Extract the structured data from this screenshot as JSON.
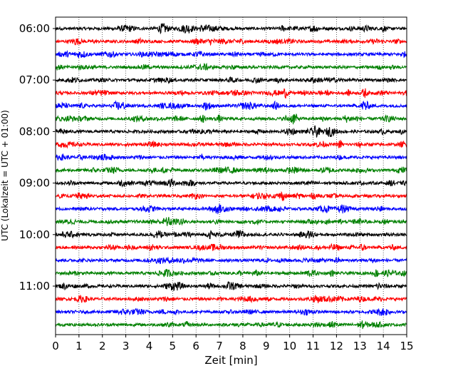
{
  "chart_data": {
    "type": "line",
    "title": "",
    "xlabel": "Zeit  [min]",
    "ylabel": "UTC (Lokalzeit = UTC + 01:00)",
    "xlim": [
      0,
      15
    ],
    "x_ticks": [
      0,
      1,
      2,
      3,
      4,
      5,
      6,
      7,
      8,
      9,
      10,
      11,
      12,
      13,
      14,
      15
    ],
    "y_tick_labels": [
      "06:00",
      "07:00",
      "08:00",
      "09:00",
      "10:00",
      "11:00"
    ],
    "trace_interval_min": 15,
    "trace_count": 24,
    "trace_colors": [
      "#000000",
      "#ff0000",
      "#0000ff",
      "#008000"
    ],
    "x_grid": "dotted",
    "events": [
      {
        "trace": 0,
        "x": 9.7,
        "amp": 0.35
      },
      {
        "trace": 0,
        "x": 14.0,
        "amp": 0.35
      },
      {
        "trace": 5,
        "x": 9.8,
        "amp": 0.6
      },
      {
        "trace": 5,
        "x": 13.2,
        "amp": 0.6
      },
      {
        "trace": 6,
        "x": 2.6,
        "amp": 0.45
      },
      {
        "trace": 6,
        "x": 6.4,
        "amp": 0.45
      },
      {
        "trace": 6,
        "x": 9.4,
        "amp": 0.5
      },
      {
        "trace": 6,
        "x": 13.2,
        "amp": 0.7
      },
      {
        "trace": 7,
        "x": 6.3,
        "amp": 0.45
      },
      {
        "trace": 7,
        "x": 10.2,
        "amp": 0.8
      },
      {
        "trace": 7,
        "x": 12.4,
        "amp": 0.4
      },
      {
        "trace": 8,
        "x": 14.0,
        "amp": 0.3
      },
      {
        "trace": 9,
        "x": 13.0,
        "amp": 0.35
      },
      {
        "trace": 16,
        "x": 6.6,
        "amp": 0.45
      },
      {
        "trace": 17,
        "x": 13.1,
        "amp": 0.45
      },
      {
        "trace": 18,
        "x": 12.0,
        "amp": 0.35
      },
      {
        "trace": 19,
        "x": 13.7,
        "amp": 0.45
      },
      {
        "trace": 19,
        "x": 11.8,
        "amp": 0.3
      },
      {
        "trace": 20,
        "x": 13.8,
        "amp": 0.4
      },
      {
        "trace": 23,
        "x": 5.6,
        "amp": 0.35
      }
    ]
  }
}
